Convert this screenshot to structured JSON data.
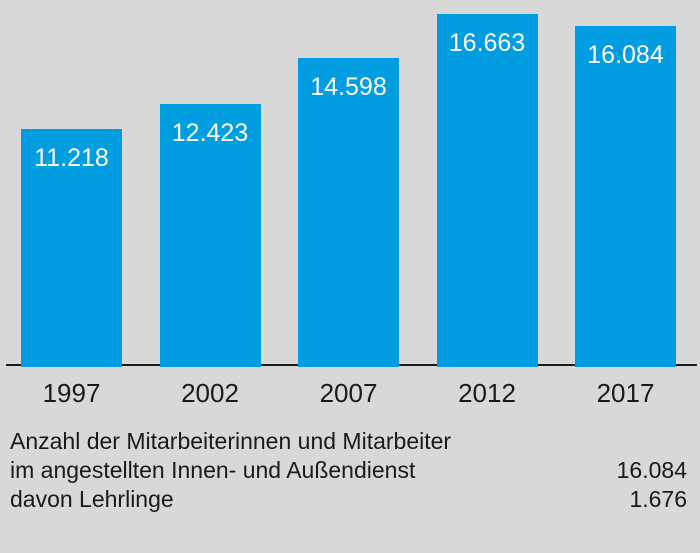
{
  "chart_data": {
    "type": "bar",
    "categories": [
      "1997",
      "2002",
      "2007",
      "2012",
      "2017"
    ],
    "values": [
      11218,
      12423,
      14598,
      16663,
      16084
    ],
    "value_labels": [
      "11.218",
      "12.423",
      "14.598",
      "16.663",
      "16.084"
    ],
    "title": "",
    "xlabel": "",
    "ylabel": "",
    "ylim": [
      0,
      17323
    ],
    "grid": false,
    "legend": "none",
    "bar_color": "#009ee0",
    "bar_label_color": "#ffffff",
    "axis_line_color": "#1a1a1a",
    "tick_label_color": "#1a1a1a",
    "background_color": "#d8d8d8"
  },
  "footer": {
    "line1": "Anzahl der Mitarbeiterinnen und Mitarbeiter",
    "line2_label": "im angestellten Innen- und Außendienst",
    "line2_value": "16.084",
    "line3_label": "davon Lehrlinge",
    "line3_value": "1.676"
  }
}
